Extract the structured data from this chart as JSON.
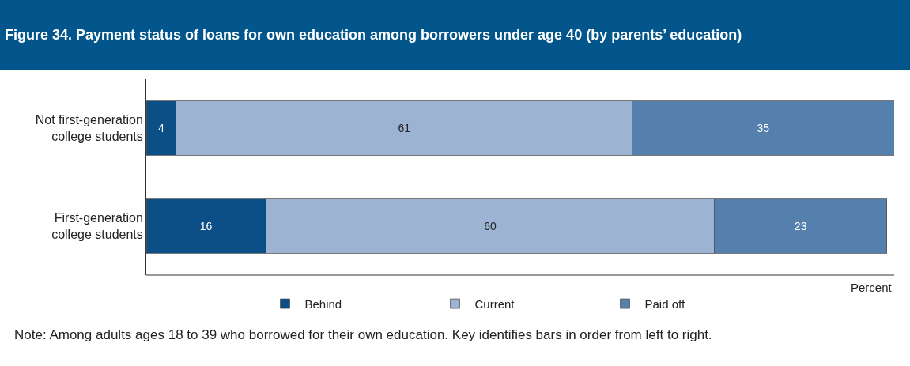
{
  "chart_data": {
    "type": "bar",
    "orientation": "horizontal",
    "stacked": true,
    "title": "Figure 34. Payment status of loans for own education among borrowers under age 40 (by parents’ education)",
    "xlabel": "Percent",
    "categories": [
      "Not first-generation college students",
      "First-generation college students"
    ],
    "series": [
      {
        "name": "Behind",
        "color": "#0b4f86",
        "values": [
          4,
          16
        ]
      },
      {
        "name": "Current",
        "color": "#9db3d3",
        "values": [
          61,
          60
        ]
      },
      {
        "name": "Paid off",
        "color": "#5580ad",
        "values": [
          35,
          23
        ]
      }
    ],
    "xlim": [
      0,
      100
    ],
    "data_labels": true,
    "legend": "bottom",
    "tick_labels": "y",
    "annotations": [
      "Note: Among adults ages 18 to 39 who borrowed for their own education. Key identifies bars in order from left to right."
    ]
  }
}
